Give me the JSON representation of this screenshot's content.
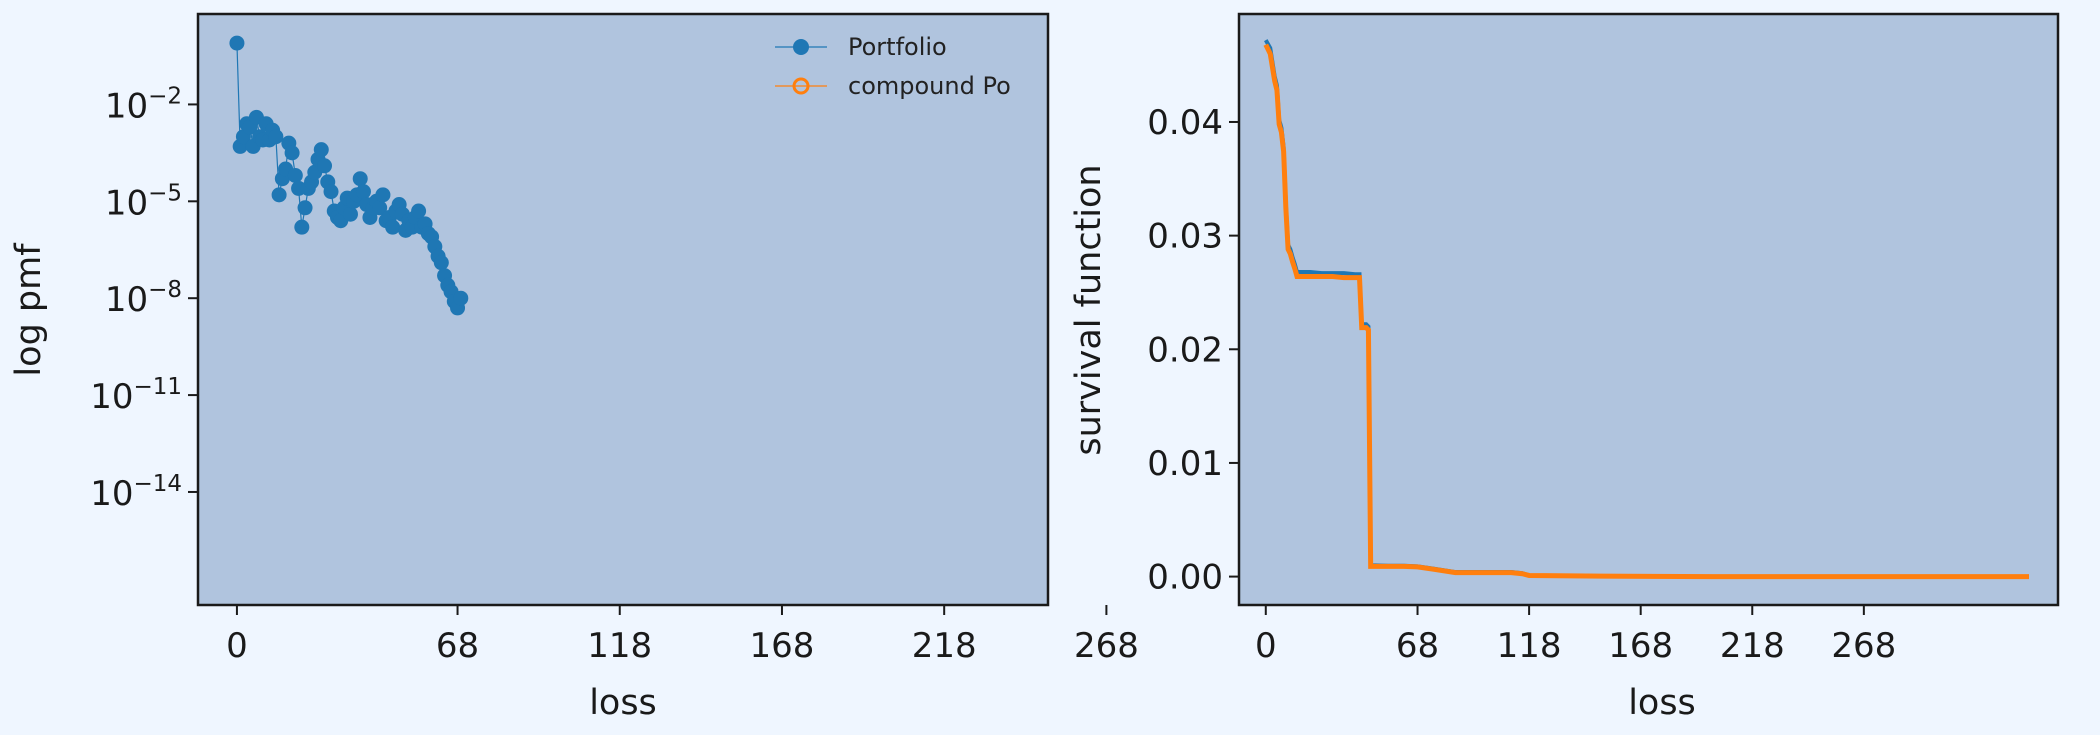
{
  "colors": {
    "page_background": "#eff6ff",
    "plot_background": "#b0c4de",
    "portfolio": "#1f77b4",
    "compound": "#ff7f0e"
  },
  "chart_data": [
    {
      "type": "line",
      "yscale": "log",
      "xlabel": "loss",
      "ylabel": "log pmf",
      "xlim": [
        -12,
        250
      ],
      "ylim_log10": [
        -17.5,
        0.8
      ],
      "x_ticks": [
        0,
        68,
        118,
        168,
        218,
        268
      ],
      "x_tick_labels": [
        "0",
        "68",
        "118",
        "168",
        "218",
        "268"
      ],
      "y_ticks_log10": [
        -2,
        -5,
        -8,
        -11,
        -14
      ],
      "y_tick_labels": [
        {
          "base": "10",
          "exp": "−2"
        },
        {
          "base": "10",
          "exp": "−5"
        },
        {
          "base": "10",
          "exp": "−8"
        },
        {
          "base": "10",
          "exp": "−11"
        },
        {
          "base": "10",
          "exp": "−14"
        }
      ],
      "legend": {
        "position": "top-right",
        "entries": [
          "Portfolio",
          "compound Po"
        ]
      },
      "series": [
        {
          "name": "Portfolio",
          "marker": "filled-circle",
          "log10_values": [
            [
              0,
              -0.1
            ],
            [
              1,
              -3.3
            ],
            [
              2,
              -3.0
            ],
            [
              3,
              -2.6
            ],
            [
              4,
              -2.7
            ],
            [
              5,
              -3.3
            ],
            [
              6,
              -2.4
            ],
            [
              7,
              -3.0
            ],
            [
              8,
              -3.1
            ],
            [
              9,
              -2.6
            ],
            [
              10,
              -3.1
            ],
            [
              11,
              -2.8
            ],
            [
              12,
              -3.0
            ],
            [
              13,
              -4.8
            ],
            [
              14,
              -4.3
            ],
            [
              15,
              -4.0
            ],
            [
              16,
              -3.2
            ],
            [
              17,
              -3.5
            ],
            [
              18,
              -4.2
            ],
            [
              19,
              -4.6
            ],
            [
              20,
              -5.8
            ],
            [
              21,
              -5.2
            ],
            [
              22,
              -4.6
            ],
            [
              23,
              -4.4
            ],
            [
              24,
              -4.1
            ],
            [
              25,
              -3.7
            ],
            [
              26,
              -3.4
            ],
            [
              27,
              -3.9
            ],
            [
              28,
              -4.4
            ],
            [
              29,
              -4.7
            ],
            [
              30,
              -5.3
            ],
            [
              31,
              -5.5
            ],
            [
              32,
              -5.6
            ],
            [
              33,
              -5.2
            ],
            [
              34,
              -4.9
            ],
            [
              35,
              -5.4
            ],
            [
              36,
              -5.0
            ],
            [
              37,
              -4.8
            ],
            [
              38,
              -4.3
            ],
            [
              39,
              -4.7
            ],
            [
              40,
              -5.1
            ],
            [
              41,
              -5.5
            ],
            [
              42,
              -5.2
            ],
            [
              43,
              -5.0
            ],
            [
              44,
              -5.2
            ],
            [
              45,
              -4.8
            ],
            [
              46,
              -5.6
            ],
            [
              47,
              -5.5
            ],
            [
              48,
              -5.8
            ],
            [
              49,
              -5.3
            ],
            [
              50,
              -5.1
            ],
            [
              51,
              -5.4
            ],
            [
              52,
              -5.9
            ],
            [
              53,
              -5.6
            ],
            [
              54,
              -5.8
            ],
            [
              55,
              -5.5
            ],
            [
              56,
              -5.3
            ],
            [
              57,
              -5.8
            ],
            [
              58,
              -5.7
            ],
            [
              59,
              -6.0
            ],
            [
              60,
              -6.1
            ],
            [
              61,
              -6.4
            ],
            [
              62,
              -6.7
            ],
            [
              63,
              -6.9
            ],
            [
              64,
              -7.3
            ],
            [
              65,
              -7.6
            ],
            [
              66,
              -7.8
            ],
            [
              67,
              -8.1
            ],
            [
              68,
              -8.3
            ],
            [
              69,
              -8.0
            ]
          ]
        }
      ]
    },
    {
      "type": "line",
      "xlabel": "loss",
      "ylabel": "survival function",
      "xlim": [
        -12,
        355
      ],
      "ylim": [
        -0.0025,
        0.0495
      ],
      "x_ticks": [
        0,
        68,
        118,
        168,
        218,
        268
      ],
      "x_tick_labels": [
        "0",
        "68",
        "118",
        "168",
        "218",
        "268"
      ],
      "y_ticks": [
        0.0,
        0.01,
        0.02,
        0.03,
        0.04
      ],
      "y_tick_labels": [
        "0.00",
        "0.01",
        "0.02",
        "0.03",
        "0.04"
      ],
      "series": [
        {
          "name": "Portfolio",
          "points": [
            [
              0,
              0.0472
            ],
            [
              2,
              0.0465
            ],
            [
              4,
              0.044
            ],
            [
              5,
              0.0432
            ],
            [
              6,
              0.0402
            ],
            [
              7,
              0.0395
            ],
            [
              8,
              0.0378
            ],
            [
              9,
              0.0328
            ],
            [
              10,
              0.0292
            ],
            [
              11,
              0.0288
            ],
            [
              12,
              0.0281
            ],
            [
              13,
              0.0275
            ],
            [
              14,
              0.0268
            ],
            [
              20,
              0.0268
            ],
            [
              25,
              0.0267
            ],
            [
              30,
              0.0267
            ],
            [
              35,
              0.0267
            ],
            [
              40,
              0.0266
            ],
            [
              42,
              0.0266
            ],
            [
              43,
              0.0222
            ],
            [
              45,
              0.0222
            ],
            [
              46,
              0.022
            ],
            [
              47,
              0.001
            ],
            [
              55,
              0.00095
            ],
            [
              62,
              0.00095
            ],
            [
              68,
              0.0009
            ],
            [
              75,
              0.0007
            ],
            [
              85,
              0.0004
            ],
            [
              100,
              0.0004
            ],
            [
              110,
              0.0004
            ],
            [
              115,
              0.0003
            ],
            [
              118,
              0.0001
            ],
            [
              150,
              5e-05
            ],
            [
              200,
              0.0
            ],
            [
              250,
              0.0
            ],
            [
              300,
              0.0
            ],
            [
              342,
              0.0
            ]
          ]
        },
        {
          "name": "compound Po",
          "points": [
            [
              0,
              0.0468
            ],
            [
              2,
              0.046
            ],
            [
              4,
              0.0436
            ],
            [
              5,
              0.0428
            ],
            [
              6,
              0.0398
            ],
            [
              7,
              0.0391
            ],
            [
              8,
              0.0374
            ],
            [
              9,
              0.0324
            ],
            [
              10,
              0.0288
            ],
            [
              11,
              0.0284
            ],
            [
              12,
              0.0277
            ],
            [
              13,
              0.0271
            ],
            [
              14,
              0.0264
            ],
            [
              20,
              0.0264
            ],
            [
              25,
              0.0264
            ],
            [
              30,
              0.0264
            ],
            [
              35,
              0.0263
            ],
            [
              40,
              0.0263
            ],
            [
              42,
              0.0263
            ],
            [
              43,
              0.0219
            ],
            [
              45,
              0.0219
            ],
            [
              46,
              0.0217
            ],
            [
              47,
              0.0009
            ],
            [
              55,
              0.0009
            ],
            [
              62,
              0.0009
            ],
            [
              68,
              0.00085
            ],
            [
              75,
              0.00065
            ],
            [
              85,
              0.00035
            ],
            [
              100,
              0.00035
            ],
            [
              110,
              0.00035
            ],
            [
              115,
              0.00025
            ],
            [
              118,
              0.0001
            ],
            [
              150,
              4e-05
            ],
            [
              200,
              0.0
            ],
            [
              250,
              0.0
            ],
            [
              300,
              0.0
            ],
            [
              342,
              0.0
            ]
          ]
        }
      ]
    }
  ]
}
